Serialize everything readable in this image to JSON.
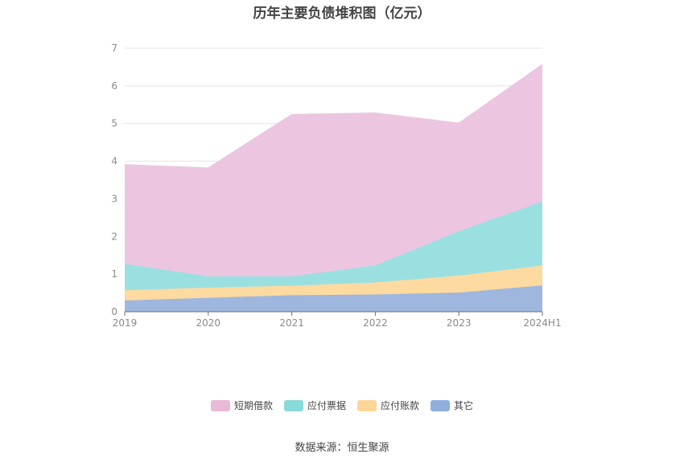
{
  "title": "历年主要负债堆积图（亿元）",
  "source": "数据来源：恒生聚源",
  "chart_data": {
    "type": "area",
    "stacked": true,
    "categories": [
      "2019",
      "2020",
      "2021",
      "2022",
      "2023",
      "2024H1"
    ],
    "ylim": [
      0,
      7
    ],
    "yticks": [
      0,
      1,
      2,
      3,
      4,
      5,
      6,
      7
    ],
    "grid": true,
    "legend_position": "bottom",
    "series": [
      {
        "name": "其它",
        "color": "#9fb6df",
        "values": [
          0.3,
          0.37,
          0.44,
          0.46,
          0.51,
          0.7
        ]
      },
      {
        "name": "应付账款",
        "color": "#fddaa0",
        "values": [
          0.27,
          0.27,
          0.25,
          0.32,
          0.45,
          0.53
        ]
      },
      {
        "name": "应付票据",
        "color": "#9be0e1",
        "values": [
          0.7,
          0.3,
          0.25,
          0.45,
          1.18,
          1.7
        ]
      },
      {
        "name": "短期借款",
        "color": "#ecc6e1",
        "values": [
          2.64,
          2.88,
          4.3,
          4.05,
          2.87,
          3.64
        ]
      }
    ]
  },
  "legend": [
    {
      "label": "短期借款",
      "color": "#e9b9d8"
    },
    {
      "label": "应付票据",
      "color": "#88dadb"
    },
    {
      "label": "应付账款",
      "color": "#fdd798"
    },
    {
      "label": "其它",
      "color": "#8fb0dd"
    }
  ]
}
